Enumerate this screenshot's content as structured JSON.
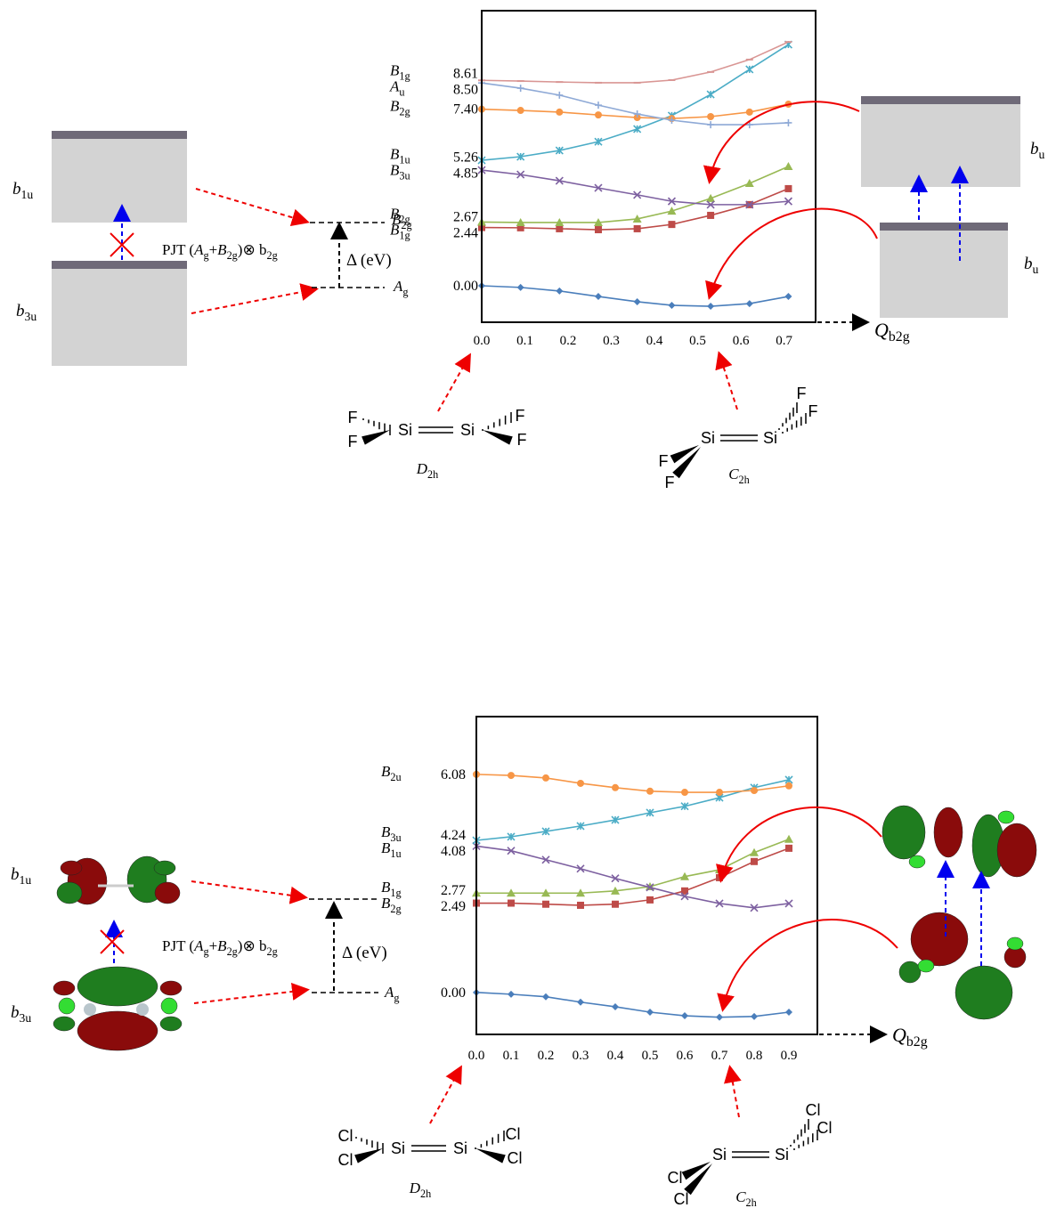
{
  "chart_data": [
    {
      "type": "line",
      "x": [
        0,
        0.09,
        0.18,
        0.27,
        0.36,
        0.44,
        0.53,
        0.62,
        0.71
      ],
      "xlim": [
        0,
        0.773
      ],
      "ylim": [
        -1.53,
        11.53
      ],
      "xticks": [
        {
          "value": 0,
          "label": "0.0"
        },
        {
          "value": 0.1,
          "label": "0.1"
        },
        {
          "value": 0.2,
          "label": "0.2"
        },
        {
          "value": 0.3,
          "label": "0.3"
        },
        {
          "value": 0.4,
          "label": "0.4"
        },
        {
          "value": 0.5,
          "label": "0.5"
        },
        {
          "value": 0.6,
          "label": "0.6"
        },
        {
          "value": 0.7,
          "label": "0.7"
        }
      ],
      "series": [
        {
          "label": "0.00",
          "color": "#4a7ebb",
          "marker": "diamond",
          "values": [
            0,
            -0.07,
            -0.22,
            -0.45,
            -0.67,
            -0.82,
            -0.86,
            -0.75,
            -0.45
          ]
        },
        {
          "state": {
            "symbol": "B",
            "sub": "1g"
          },
          "label": "2.44",
          "color": "#be4b48",
          "marker": "square",
          "values": [
            2.44,
            2.43,
            2.39,
            2.35,
            2.39,
            2.57,
            2.95,
            3.4,
            4.07
          ]
        },
        {
          "state": {
            "symbol": "B",
            "sub": "2g"
          },
          "label": "2.67",
          "color": "#98b954",
          "marker": "triangle",
          "values": [
            2.67,
            2.65,
            2.65,
            2.65,
            2.8,
            3.13,
            3.66,
            4.29,
            5.0
          ]
        },
        {
          "state": {
            "symbol": "B",
            "sub": "3u"
          },
          "label": "4.85",
          "color": "#7d60a0",
          "marker": "x",
          "values": [
            4.85,
            4.66,
            4.4,
            4.1,
            3.81,
            3.54,
            3.4,
            3.4,
            3.54
          ]
        },
        {
          "state": {
            "symbol": "B",
            "sub": "1u"
          },
          "label": "5.26",
          "color": "#4bacc6",
          "marker": "star",
          "values": [
            5.26,
            5.41,
            5.67,
            6.04,
            6.57,
            7.13,
            8.02,
            9.07,
            10.11
          ]
        },
        {
          "state": {
            "symbol": "B",
            "sub": "2g"
          },
          "label": "7.40",
          "color": "#f79646",
          "marker": "circle",
          "values": [
            7.4,
            7.35,
            7.28,
            7.16,
            7.05,
            7.01,
            7.09,
            7.28,
            7.61
          ]
        },
        {
          "state": {
            "symbol": "A",
            "sub": "u"
          },
          "label": "8.50",
          "color": "#8ea9d6",
          "marker": "plus",
          "values": [
            8.5,
            8.28,
            7.99,
            7.57,
            7.2,
            6.94,
            6.75,
            6.75,
            6.83
          ]
        },
        {
          "state": {
            "symbol": "B",
            "sub": "1g"
          },
          "label": "8.61",
          "color": "#d99694",
          "marker": "dash",
          "values": [
            8.61,
            8.58,
            8.54,
            8.51,
            8.51,
            8.62,
            8.96,
            9.48,
            10.22
          ]
        }
      ],
      "annotations": {
        "orbital_upper": {
          "symbol": "b",
          "sub": "1u"
        },
        "orbital_lower": {
          "symbol": "b",
          "sub": "3u"
        },
        "level_upper": {
          "symbol": "B",
          "sub": "2g"
        },
        "level_lower": {
          "symbol": "A",
          "sub": "g"
        },
        "pjt": {
          "prefix": "PJT (",
          "a": {
            "symbol": "A",
            "sub": "g"
          },
          "plus": "+",
          "b": {
            "symbol": "B",
            "sub": "2g"
          },
          "suffix": ")⊗ b",
          "sub": "2g"
        },
        "delta": "Δ (eV)",
        "q_axis": {
          "symbol": "Q",
          "sub": "b2g"
        },
        "right_upper": {
          "symbol": "b",
          "sub": "u"
        },
        "right_lower": {
          "symbol": "b",
          "sub": "u"
        },
        "d2h": {
          "symbol": "D",
          "sub": "2h"
        },
        "c2h": {
          "symbol": "C",
          "sub": "2h"
        },
        "halogen": "F",
        "silicon": "Si"
      }
    },
    {
      "type": "line",
      "x": [
        0,
        0.1,
        0.2,
        0.3,
        0.4,
        0.5,
        0.6,
        0.7,
        0.8,
        0.9
      ],
      "xlim": [
        0,
        0.982
      ],
      "ylim": [
        -1.17,
        7.69
      ],
      "xticks": [
        {
          "value": 0,
          "label": "0.0"
        },
        {
          "value": 0.1,
          "label": "0.1"
        },
        {
          "value": 0.2,
          "label": "0.2"
        },
        {
          "value": 0.3,
          "label": "0.3"
        },
        {
          "value": 0.4,
          "label": "0.4"
        },
        {
          "value": 0.5,
          "label": "0.5"
        },
        {
          "value": 0.6,
          "label": "0.6"
        },
        {
          "value": 0.7,
          "label": "0.7"
        },
        {
          "value": 0.8,
          "label": "0.8"
        },
        {
          "value": 0.9,
          "label": "0.9"
        }
      ],
      "series": [
        {
          "label": "0.00",
          "color": "#4a7ebb",
          "marker": "diamond",
          "values": [
            0,
            -0.05,
            -0.12,
            -0.27,
            -0.4,
            -0.55,
            -0.65,
            -0.69,
            -0.67,
            -0.55
          ]
        },
        {
          "state": {
            "symbol": "B",
            "sub": "2g"
          },
          "label": "2.49",
          "color": "#be4b48",
          "marker": "square",
          "values": [
            2.49,
            2.49,
            2.46,
            2.43,
            2.46,
            2.58,
            2.83,
            3.2,
            3.65,
            4.02
          ]
        },
        {
          "state": {
            "symbol": "B",
            "sub": "1g"
          },
          "label": "2.77",
          "color": "#98b954",
          "marker": "triangle",
          "values": [
            2.77,
            2.77,
            2.77,
            2.77,
            2.83,
            2.95,
            3.23,
            3.42,
            3.9,
            4.27
          ]
        },
        {
          "state": {
            "symbol": "B",
            "sub": "1u"
          },
          "label": "4.08",
          "color": "#7d60a0",
          "marker": "x",
          "values": [
            4.08,
            3.95,
            3.7,
            3.45,
            3.18,
            2.93,
            2.68,
            2.48,
            2.36,
            2.48
          ]
        },
        {
          "state": {
            "symbol": "B",
            "sub": "3u"
          },
          "label": "4.24",
          "color": "#4bacc6",
          "marker": "star",
          "values": [
            4.24,
            4.34,
            4.49,
            4.64,
            4.81,
            5.01,
            5.19,
            5.43,
            5.71,
            5.93
          ]
        },
        {
          "state": {
            "symbol": "B",
            "sub": "2u"
          },
          "label": "6.08",
          "color": "#f79646",
          "marker": "circle",
          "values": [
            6.08,
            6.05,
            5.98,
            5.83,
            5.71,
            5.61,
            5.58,
            5.58,
            5.63,
            5.76
          ]
        }
      ],
      "annotations": {
        "orbital_upper": {
          "symbol": "b",
          "sub": "1u"
        },
        "orbital_lower": {
          "symbol": "b",
          "sub": "3u"
        },
        "level_lower": {
          "symbol": "A",
          "sub": "g"
        },
        "pjt": {
          "prefix": "PJT (",
          "a": {
            "symbol": "A",
            "sub": "g"
          },
          "plus": "+",
          "b": {
            "symbol": "B",
            "sub": "2g"
          },
          "suffix": ")⊗ b",
          "sub": "2g"
        },
        "delta": "Δ (eV)",
        "q_axis": {
          "symbol": "Q",
          "sub": "b2g"
        },
        "d2h": {
          "symbol": "D",
          "sub": "2h"
        },
        "c2h": {
          "symbol": "C",
          "sub": "2h"
        },
        "halogen": "Cl",
        "silicon": "Si"
      }
    }
  ]
}
